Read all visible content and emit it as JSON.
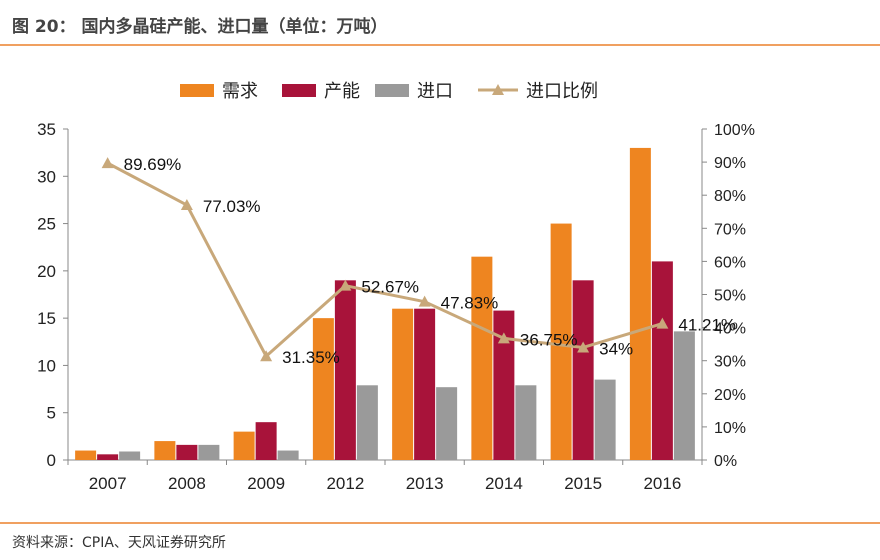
{
  "figure": {
    "title": "图 20：   国内多晶硅产能、进口量（单位：万吨）",
    "source": "资料来源：CPIA、天风证券研究所"
  },
  "colors": {
    "demand": "#ee8520",
    "capacity": "#a8133a",
    "import": "#9a9a9a",
    "ratio": "#c8a87a",
    "rule": "#f0a060"
  },
  "chart_data": {
    "type": "bar",
    "title": "",
    "categories": [
      "2007",
      "2008",
      "2009",
      "2012",
      "2013",
      "2014",
      "2015",
      "2016"
    ],
    "series": [
      {
        "name": "需求",
        "values": [
          1.0,
          2.0,
          3.0,
          15.0,
          16.0,
          21.5,
          25.0,
          33.0
        ]
      },
      {
        "name": "产能",
        "values": [
          0.6,
          1.6,
          4.0,
          19.0,
          16.0,
          15.8,
          19.0,
          21.0
        ]
      },
      {
        "name": "进口",
        "values": [
          0.9,
          1.6,
          1.0,
          7.9,
          7.7,
          7.9,
          8.5,
          13.6
        ]
      }
    ],
    "line_series": {
      "name": "进口比例",
      "type": "line",
      "axis": "right",
      "values": [
        89.69,
        77.03,
        31.35,
        52.67,
        47.83,
        36.75,
        34.0,
        41.21
      ],
      "labels": [
        "89.69%",
        "77.03%",
        "31.35%",
        "52.67%",
        "47.83%",
        "36.75%",
        "34%",
        "41.21%"
      ]
    },
    "y_left": {
      "min": 0,
      "max": 35,
      "ticks": [
        "0",
        "5",
        "10",
        "15",
        "20",
        "25",
        "30",
        "35"
      ]
    },
    "y_right": {
      "min": 0,
      "max": 100,
      "ticks": [
        "0%",
        "10%",
        "20%",
        "30%",
        "40%",
        "50%",
        "60%",
        "70%",
        "80%",
        "90%",
        "100%"
      ]
    },
    "legend": {
      "position": "top",
      "items": [
        "需求",
        "产能",
        "进口",
        "进口比例"
      ]
    },
    "grid": false,
    "xlabel": "",
    "ylabel": ""
  }
}
